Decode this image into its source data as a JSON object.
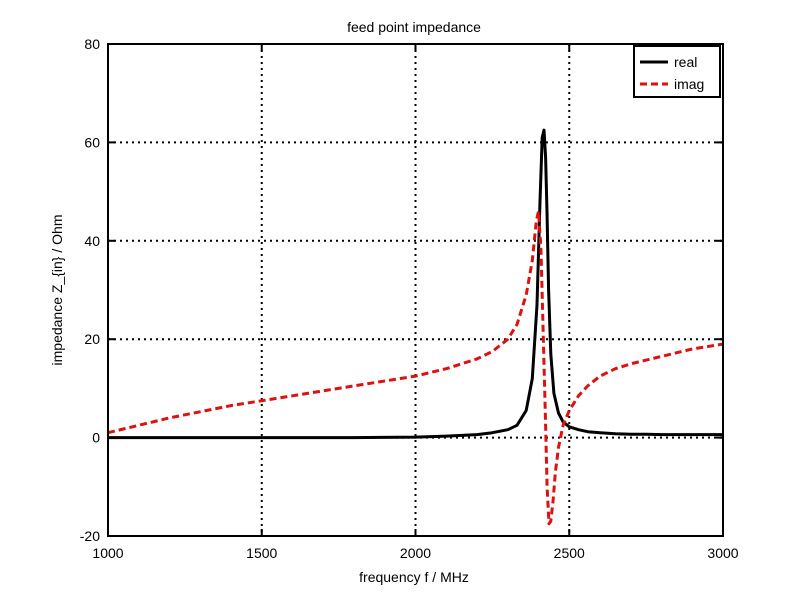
{
  "chart_data": {
    "type": "line",
    "title": "feed point impedance",
    "xlabel": "frequency f / MHz",
    "ylabel": "impedance Z_{in} / Ohm",
    "xlim": [
      1000,
      3000
    ],
    "ylim": [
      -20,
      80
    ],
    "xticks": [
      1000,
      1500,
      2000,
      2500,
      3000
    ],
    "yticks": [
      -20,
      0,
      20,
      40,
      60,
      80
    ],
    "xtick_labels": [
      "1000",
      "1500",
      "2000",
      "2500",
      "3000"
    ],
    "ytick_labels": [
      "-20",
      "0",
      "20",
      "40",
      "60",
      "80"
    ],
    "grid": true,
    "legend_position": "top-right",
    "series": [
      {
        "name": "real",
        "color": "#000000",
        "style": "solid",
        "x": [
          1000,
          1200,
          1400,
          1600,
          1800,
          2000,
          2100,
          2200,
          2250,
          2300,
          2330,
          2360,
          2380,
          2395,
          2405,
          2412,
          2418,
          2423,
          2428,
          2433,
          2440,
          2450,
          2465,
          2480,
          2500,
          2530,
          2560,
          2600,
          2650,
          2700,
          2750,
          2800,
          2850,
          2900,
          2950,
          3000
        ],
        "y": [
          0,
          0,
          0,
          0,
          0,
          0.1,
          0.3,
          0.6,
          1.0,
          1.6,
          2.5,
          5.5,
          12,
          27,
          48,
          61,
          62.5,
          57,
          45,
          30,
          17,
          9,
          5,
          3.2,
          2.2,
          1.6,
          1.2,
          1.0,
          0.8,
          0.7,
          0.7,
          0.6,
          0.6,
          0.6,
          0.6,
          0.6
        ]
      },
      {
        "name": "imag",
        "color": "#dd1111",
        "style": "dashed",
        "x": [
          1000,
          1200,
          1400,
          1600,
          1800,
          2000,
          2100,
          2200,
          2250,
          2300,
          2330,
          2360,
          2380,
          2393,
          2400,
          2408,
          2415,
          2422,
          2428,
          2434,
          2440,
          2447,
          2455,
          2465,
          2480,
          2500,
          2530,
          2560,
          2600,
          2650,
          2700,
          2800,
          2900,
          3000
        ],
        "y": [
          1,
          4,
          6.5,
          8.5,
          10.5,
          12.5,
          14,
          16,
          17.5,
          20,
          23,
          29,
          36,
          44,
          46,
          38,
          22,
          5,
          -10,
          -17.5,
          -17,
          -13,
          -7,
          -2,
          2.5,
          5.5,
          8.5,
          10.5,
          12.5,
          14,
          15,
          16.5,
          18,
          19
        ]
      }
    ]
  }
}
